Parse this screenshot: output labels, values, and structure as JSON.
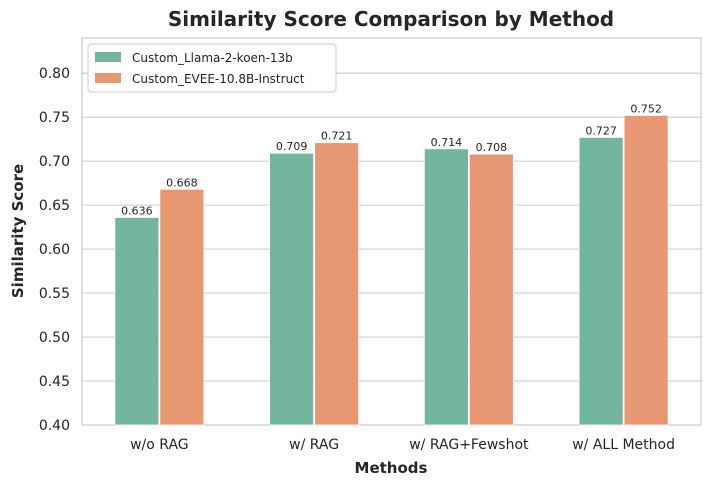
{
  "chart_data": {
    "type": "bar",
    "title": "Similarity Score Comparison by Method",
    "xlabel": "Methods",
    "ylabel": "Similarity Score",
    "ylim": [
      0.4,
      0.84
    ],
    "yticks": [
      "0.40",
      "0.45",
      "0.50",
      "0.55",
      "0.60",
      "0.65",
      "0.70",
      "0.75",
      "0.80"
    ],
    "grid": true,
    "legend_position": "top-left",
    "categories": [
      "w/o RAG",
      "w/ RAG",
      "w/ RAG+Fewshot",
      "w/ ALL Method"
    ],
    "series": [
      {
        "name": "Custom_Llama-2-koen-13b",
        "color": "#72b6a0",
        "values": [
          0.636,
          0.709,
          0.714,
          0.727
        ],
        "labels": [
          "0.636",
          "0.709",
          "0.714",
          "0.727"
        ]
      },
      {
        "name": "Custom_EVEE-10.8B-Instruct",
        "color": "#e89773",
        "values": [
          0.668,
          0.721,
          0.708,
          0.752
        ],
        "labels": [
          "0.668",
          "0.721",
          "0.708",
          "0.752"
        ]
      }
    ]
  }
}
